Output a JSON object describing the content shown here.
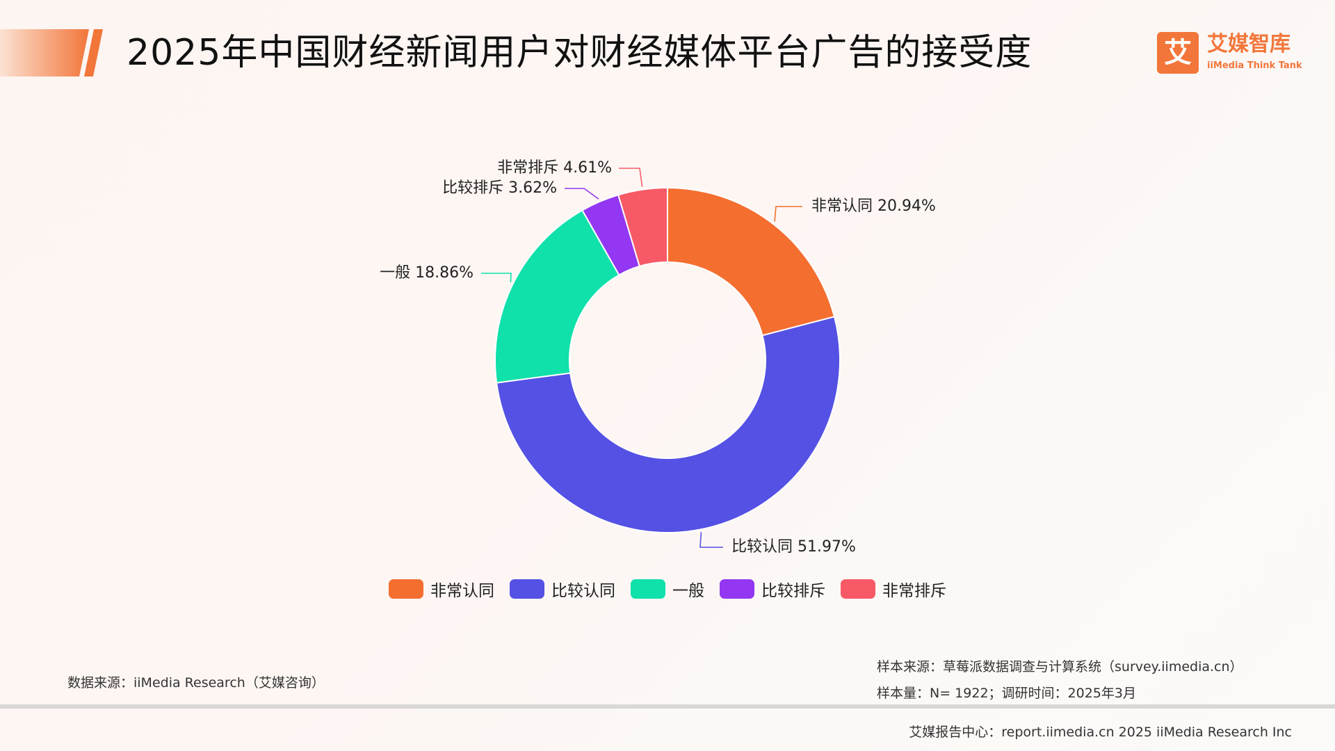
{
  "header": {
    "title": "2025年中国财经新闻用户对财经媒体平台广告的接受度"
  },
  "logo": {
    "mark": "艾",
    "name_cn": "艾媒智库",
    "name_en": "iiMedia Think Tank",
    "color": "#f2763a"
  },
  "chart_data": {
    "type": "pie",
    "variant": "donut",
    "title": "",
    "categories": [
      "非常认同",
      "比较认同",
      "一般",
      "比较排斥",
      "非常排斥"
    ],
    "values": [
      20.94,
      51.97,
      18.86,
      3.62,
      4.61
    ],
    "labels": [
      "非常认同 20.94%",
      "比较认同 51.97%",
      "一般 18.86%",
      "比较排斥 3.62%",
      "非常排斥 4.61%"
    ],
    "unit": "%",
    "colors": [
      "#f46e30",
      "#5451e4",
      "#10e0aa",
      "#9337f2",
      "#f75a66"
    ],
    "start_angle": "12 o'clock, clockwise",
    "legend_placement": "bottom-center"
  },
  "legend": [
    {
      "label": "非常认同",
      "color": "#f46e30"
    },
    {
      "label": "比较认同",
      "color": "#5451e4"
    },
    {
      "label": "一般",
      "color": "#10e0aa"
    },
    {
      "label": "比较排斥",
      "color": "#9337f2"
    },
    {
      "label": "非常排斥",
      "color": "#f75a66"
    }
  ],
  "notes": {
    "data_source": "数据来源：iiMedia Research（艾媒咨询）",
    "sample_source": "样本来源：草莓派数据调查与计算系统（survey.iimedia.cn）",
    "sample_size": "样本量：N= 1922；调研时间：2025年3月"
  },
  "footer": {
    "text": "艾媒报告中心：report.iimedia.cn   2025 iiMedia Research Inc"
  }
}
